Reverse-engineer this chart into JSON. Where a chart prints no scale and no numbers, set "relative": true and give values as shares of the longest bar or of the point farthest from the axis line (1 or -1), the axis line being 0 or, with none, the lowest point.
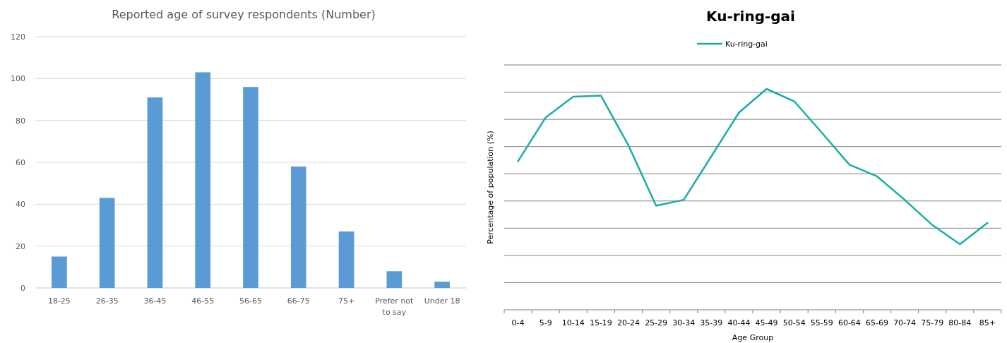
{
  "chart_data": [
    {
      "type": "bar",
      "title": "Reported age of survey respondents (Number)",
      "categories": [
        "18-25",
        "26-35",
        "36-45",
        "46-55",
        "56-65",
        "66-75",
        "75+",
        "Prefer not to say",
        "Under 18"
      ],
      "values": [
        15,
        43,
        91,
        103,
        96,
        58,
        27,
        8,
        3
      ],
      "color": "#5b9bd5",
      "ylim": [
        0,
        120
      ],
      "yticks": [
        0,
        20,
        40,
        60,
        80,
        100,
        120
      ],
      "grid": "y"
    },
    {
      "type": "line",
      "title": "Ku-ring-gai",
      "xlabel": "Age Group",
      "ylabel": "Percentage of population (%)",
      "relative": true,
      "categories": [
        "0-4",
        "5-9",
        "10-14",
        "15-19",
        "20-24",
        "25-29",
        "30-34",
        "35-39",
        "40-44",
        "45-49",
        "50-54",
        "55-59",
        "60-64",
        "65-69",
        "70-74",
        "75-79",
        "80-84",
        "85+"
      ],
      "series": [
        {
          "name": "Ku-ring-gai",
          "color": "#1aada5",
          "values": [
            0.673,
            0.871,
            0.965,
            0.97,
            0.744,
            0.471,
            0.498,
            0.695,
            0.893,
            1,
            0.944,
            0.802,
            0.657,
            0.604,
            0.498,
            0.384,
            0.297,
            0.394
          ]
        }
      ],
      "grid": "y",
      "legend": "top",
      "marker": "none",
      "line_style": "solid"
    }
  ]
}
